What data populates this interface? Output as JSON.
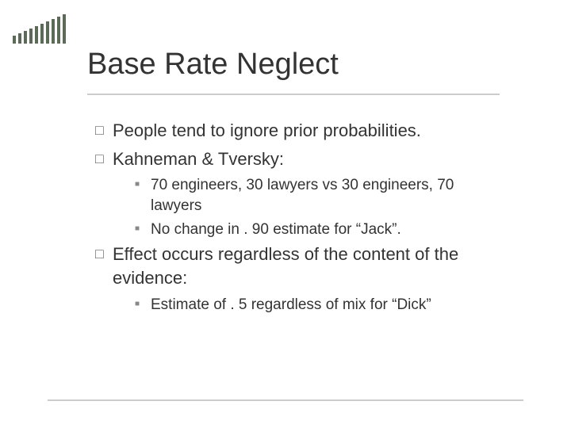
{
  "decor": {
    "comb_bars": [
      10,
      13,
      16,
      19,
      22,
      25,
      28,
      31,
      34,
      37
    ],
    "comb_color": "#5c6b58",
    "rule_color": "#cccccc",
    "text_color": "#333333",
    "background_color": "#ffffff"
  },
  "title": "Base Rate Neglect",
  "bullets": [
    {
      "level": 1,
      "marker": "□",
      "text": "People tend to ignore prior probabilities."
    },
    {
      "level": 1,
      "marker": "□",
      "text": "Kahneman & Tversky:"
    },
    {
      "level": 2,
      "marker": "■",
      "text": "70 engineers, 30 lawyers vs 30 engineers, 70 lawyers"
    },
    {
      "level": 2,
      "marker": "■",
      "text": "No change in . 90 estimate for “Jack”."
    },
    {
      "level": 1,
      "marker": "□",
      "text": "Effect occurs regardless of the content of the evidence:"
    },
    {
      "level": 2,
      "marker": "■",
      "text": "Estimate of . 5 regardless of mix for “Dick”"
    }
  ]
}
